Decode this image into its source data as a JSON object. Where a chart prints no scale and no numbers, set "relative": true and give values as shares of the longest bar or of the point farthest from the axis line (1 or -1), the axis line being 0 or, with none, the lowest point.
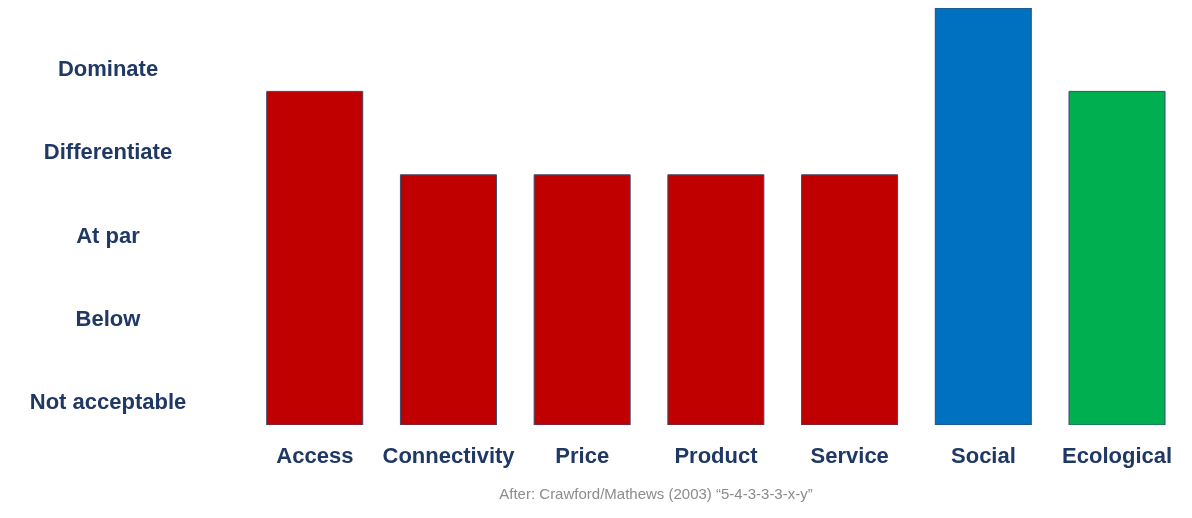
{
  "chart_data": {
    "type": "bar",
    "categories": [
      "Access",
      "Connectivity",
      "Price",
      "Product",
      "Service",
      "Social",
      "Ecological"
    ],
    "values": [
      0.8,
      0.6,
      0.6,
      0.6,
      0.6,
      1,
      0.8
    ],
    "colors": [
      "#c00000",
      "#c00000",
      "#c00000",
      "#c00000",
      "#c00000",
      "#0070c0",
      "#00b050"
    ],
    "relative": true,
    "grid": false,
    "legend": false,
    "annotations": [
      "Dominate",
      "Differentiate",
      "At par",
      "Below",
      "Not acceptable",
      "After: Crawford/Mathews (2003) “5-4-3-3-3-x-y”"
    ]
  }
}
